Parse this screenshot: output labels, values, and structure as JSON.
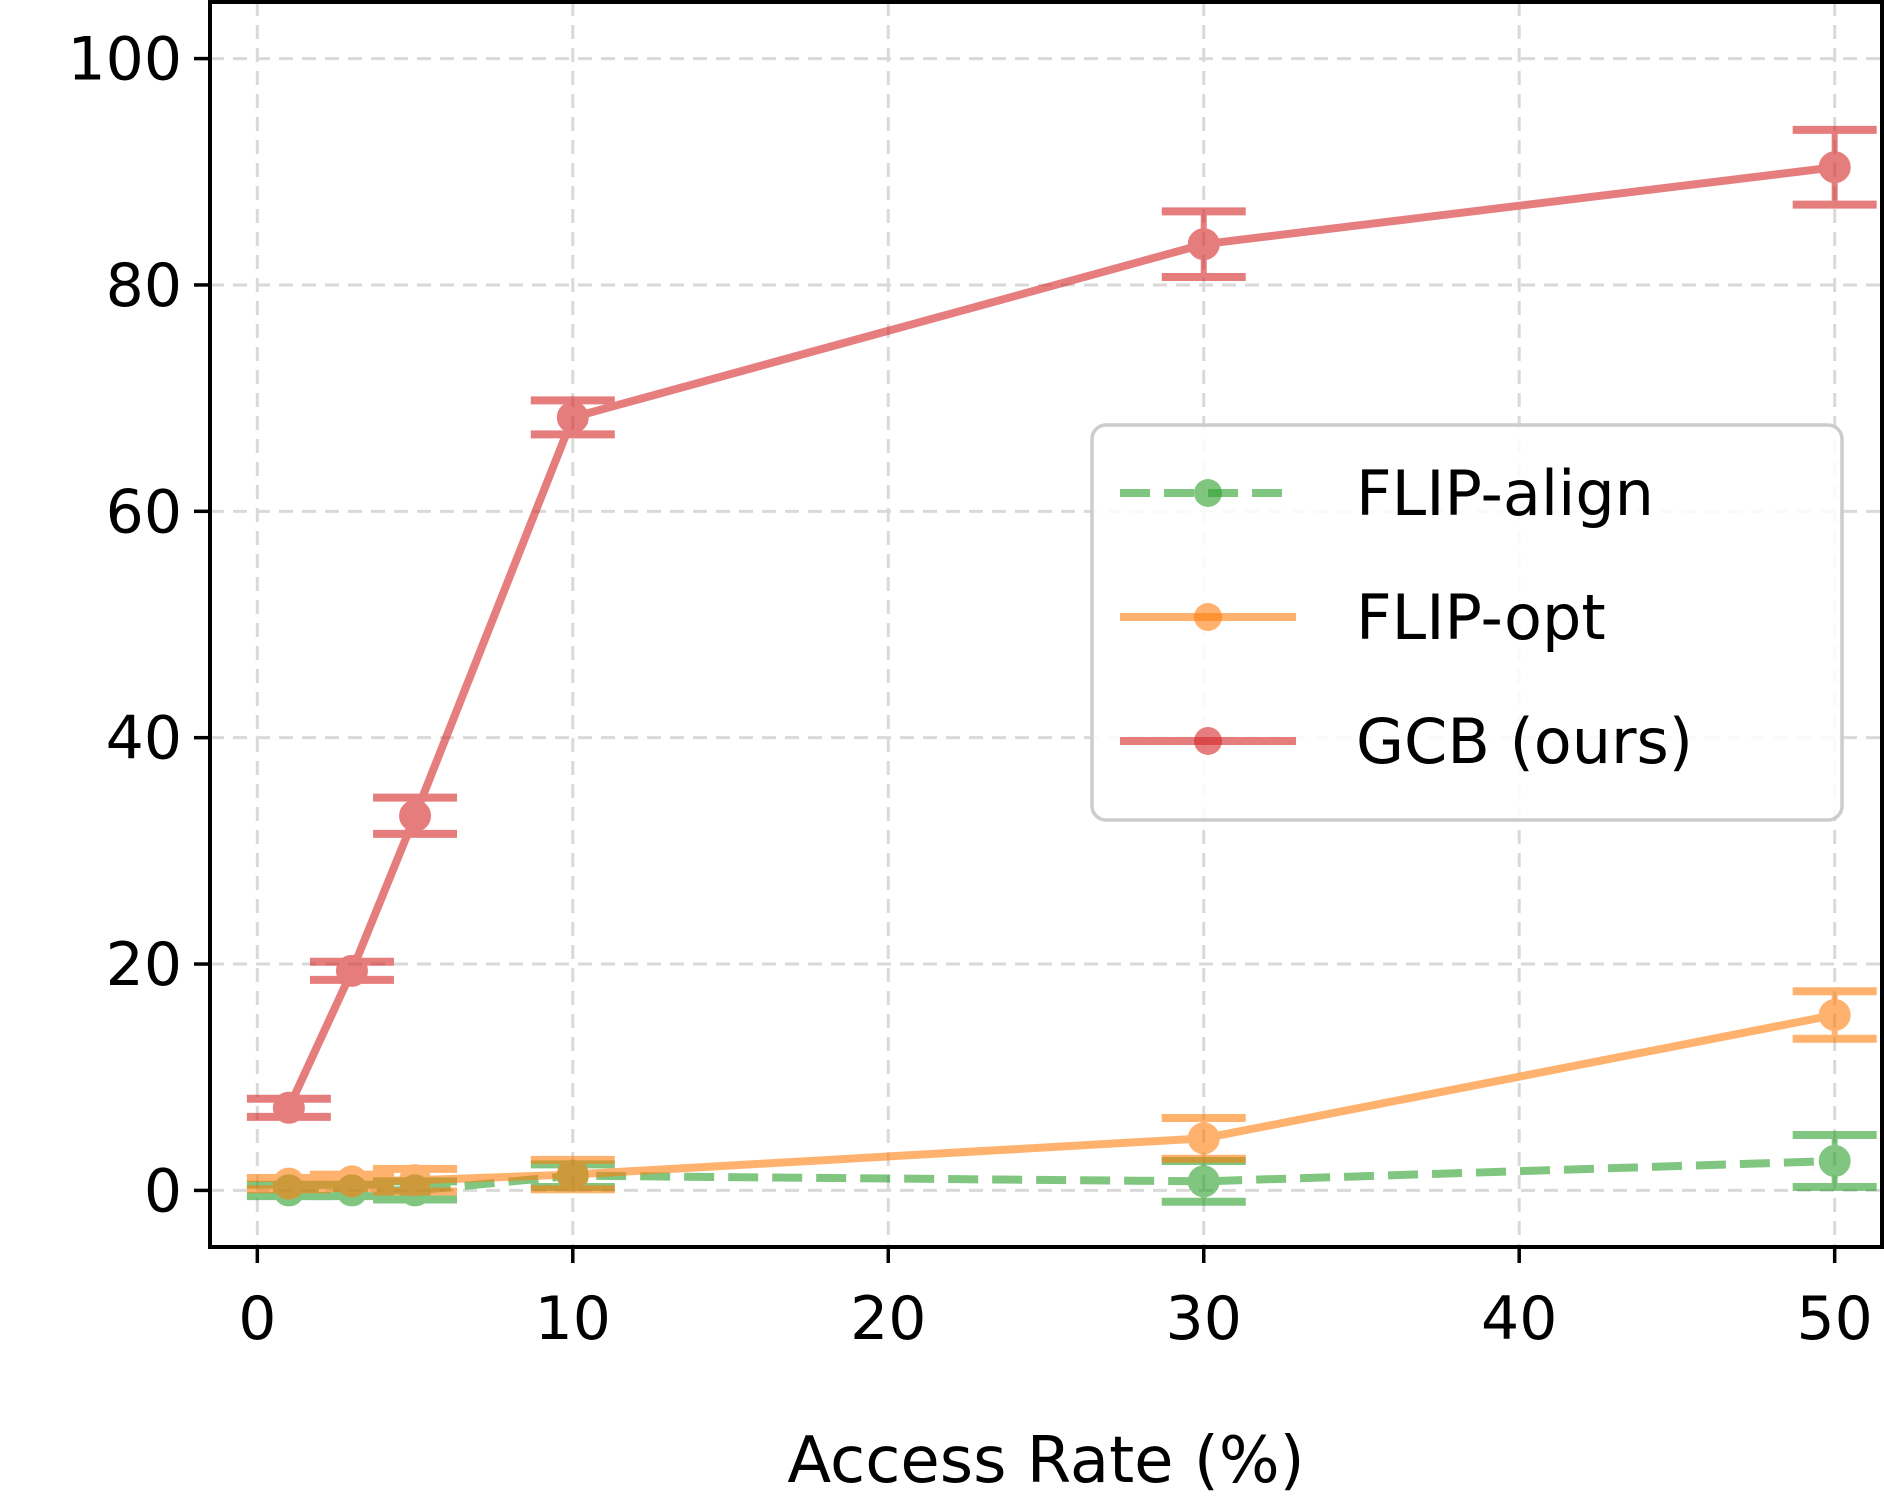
{
  "chart_data": {
    "type": "line",
    "title": "",
    "xlabel": "Access Rate (%)",
    "ylabel": "",
    "xlim": [
      -1.5,
      51.5
    ],
    "ylim": [
      -5,
      105
    ],
    "xticks": [
      0,
      10,
      20,
      30,
      40,
      50
    ],
    "yticks": [
      0,
      20,
      40,
      60,
      80,
      100
    ],
    "grid": true,
    "legend_position": "center-right",
    "x": [
      1,
      3,
      5,
      10,
      30,
      50
    ],
    "series": [
      {
        "name": "FLIP-align",
        "color": "#2ca02c",
        "line_style": "dashed",
        "values": [
          0.0,
          0.0,
          0.0,
          1.3,
          0.8,
          2.6
        ],
        "errors": [
          0.5,
          0.5,
          0.8,
          1.0,
          1.8,
          2.3
        ]
      },
      {
        "name": "FLIP-opt",
        "color": "#ff7f0e",
        "line_style": "solid",
        "values": [
          0.6,
          0.8,
          0.9,
          1.4,
          4.6,
          15.5
        ],
        "errors": [
          0.5,
          0.6,
          1.0,
          1.3,
          1.8,
          2.1
        ]
      },
      {
        "name": "GCB (ours)",
        "color": "#d62728",
        "line_style": "solid",
        "values": [
          7.3,
          19.4,
          33.1,
          68.3,
          83.6,
          90.4
        ],
        "errors": [
          0.8,
          0.8,
          1.6,
          1.5,
          2.9,
          3.3
        ]
      }
    ]
  }
}
